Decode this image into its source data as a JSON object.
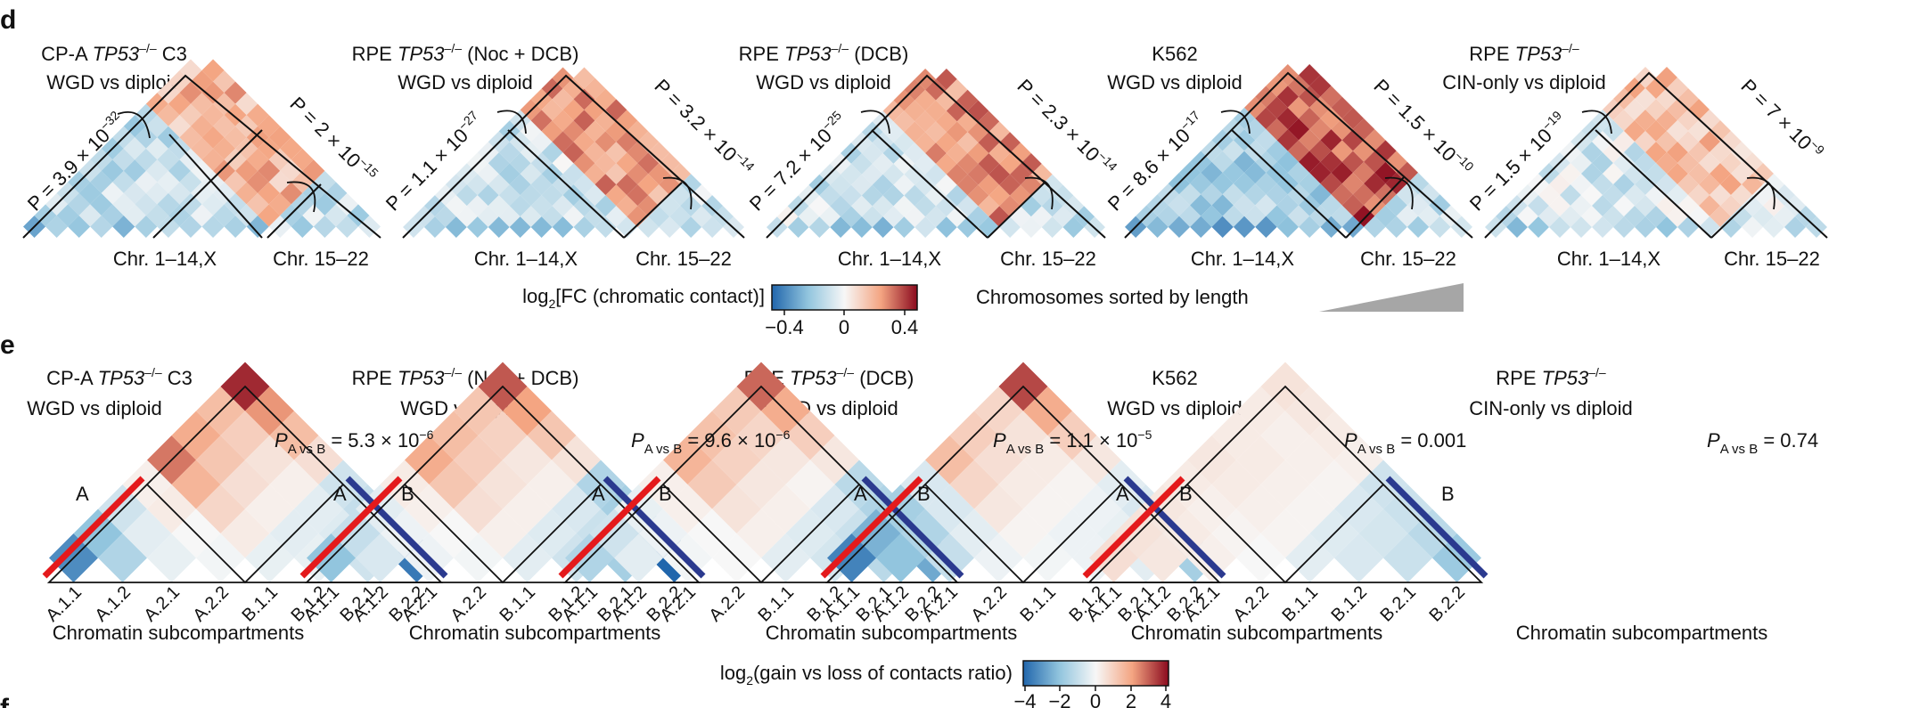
{
  "panels": {
    "d": "d",
    "e": "e",
    "f": "f"
  },
  "panel_d": {
    "plots": [
      {
        "title_pre": "CP-A ",
        "title_it": "TP53",
        "title_sup": "–/–",
        "title_post": " C3",
        "subtitle": "WGD vs diploid",
        "p_left": {
          "base": "P = 3.9 × 10",
          "exp": "−32"
        },
        "p_right": {
          "base": "P = 2 × 10",
          "exp": "−15"
        },
        "xlabel_left": "Chr. 1–14,X",
        "xlabel_right": "Chr. 15–22"
      },
      {
        "title_pre": "RPE ",
        "title_it": "TP53",
        "title_sup": "–/–",
        "title_post": " (Noc + DCB)",
        "subtitle": "WGD vs diploid",
        "p_left": {
          "base": "P = 1.1 × 10",
          "exp": "−27"
        },
        "p_right": {
          "base": "P = 3.2 × 10",
          "exp": "−14"
        },
        "xlabel_left": "Chr. 1–14,X",
        "xlabel_right": "Chr. 15–22"
      },
      {
        "title_pre": "RPE ",
        "title_it": "TP53",
        "title_sup": "–/–",
        "title_post": " (DCB)",
        "subtitle": "WGD vs diploid",
        "p_left": {
          "base": "P = 7.2 × 10",
          "exp": "−25"
        },
        "p_right": {
          "base": "P = 2.3 × 10",
          "exp": "−14"
        },
        "xlabel_left": "Chr. 1–14,X",
        "xlabel_right": "Chr. 15–22"
      },
      {
        "title_pre": "K562",
        "title_it": "",
        "title_sup": "",
        "title_post": "",
        "subtitle": "WGD vs diploid",
        "p_left": {
          "base": "P = 8.6 × 10",
          "exp": "−17"
        },
        "p_right": {
          "base": "P = 1.5 × 10",
          "exp": "−10"
        },
        "xlabel_left": "Chr. 1–14,X",
        "xlabel_right": "Chr. 15–22"
      },
      {
        "title_pre": "RPE ",
        "title_it": "TP53",
        "title_sup": "–/–",
        "title_post": "",
        "subtitle": "CIN-only vs diploid",
        "p_left": {
          "base": "P = 1.5 × 10",
          "exp": "−19"
        },
        "p_right": {
          "base": "P = 7 × 10",
          "exp": "−9"
        },
        "xlabel_left": "Chr. 1–14,X",
        "xlabel_right": "Chr. 15–22"
      }
    ],
    "colorbar": {
      "label_pre": "log",
      "label_sub": "2",
      "label_post": "[FC (chromatic contact)]",
      "ticks": [
        "−0.4",
        "0",
        "0.4"
      ],
      "range": [
        -0.4,
        0.4
      ]
    },
    "sorted_label": "Chromosomes sorted by length"
  },
  "panel_e": {
    "plots": [
      {
        "title_pre": "CP-A ",
        "title_it": "TP53",
        "title_sup": "–/–",
        "title_post": " C3",
        "subtitle": "WGD vs diploid",
        "p_main": "P",
        "p_sub": "A vs B",
        "p_val": " = 5.3 × 10",
        "p_exp": "−6"
      },
      {
        "title_pre": "RPE ",
        "title_it": "TP53",
        "title_sup": "–/–",
        "title_post": " (Noc + DCB)",
        "subtitle": "WGD vs diploid",
        "p_main": "P",
        "p_sub": "A vs B",
        "p_val": " = 9.6 × 10",
        "p_exp": "−6"
      },
      {
        "title_pre": "RPE ",
        "title_it": "TP53",
        "title_sup": "–/–",
        "title_post": " (DCB)",
        "subtitle": "WGD vs diploid",
        "p_main": "P",
        "p_sub": "A vs B",
        "p_val": " = 1.1 × 10",
        "p_exp": "−5"
      },
      {
        "title_pre": "K562",
        "title_it": "",
        "title_sup": "",
        "title_post": "",
        "subtitle": "WGD vs diploid",
        "p_main": "P",
        "p_sub": "A vs B",
        "p_val": " = 0.001",
        "p_exp": ""
      },
      {
        "title_pre": "RPE ",
        "title_it": "TP53",
        "title_sup": "–/–",
        "title_post": "",
        "subtitle": "CIN-only vs diploid",
        "p_main": "P",
        "p_sub": "A vs B",
        "p_val": " = 0.74",
        "p_exp": ""
      }
    ],
    "group_a": "A",
    "group_b": "B",
    "xlabel": "Chromatin subcompartments",
    "colorbar": {
      "label_pre": "log",
      "label_sub": "2",
      "label_post": "(gain vs loss of contacts ratio)",
      "ticks": [
        "−4",
        "−2",
        "0",
        "2",
        "4"
      ],
      "range": [
        -4,
        4
      ]
    }
  },
  "colors": {
    "negative": "#2166ac",
    "neutral": "#f7f7f7",
    "positive": "#b2182b",
    "group_a": "#e41a1c",
    "group_b": "#2b3a8f",
    "wedge": "#a6a6a6"
  },
  "chart_data": [
    {
      "type": "heatmap",
      "panel": "d",
      "series": [
        {
          "name": "CP-A TP53–/– C3 WGD vs diploid",
          "intra_small_mean": -0.2,
          "inter_mean": 0.15,
          "intra_large_mean": -0.1,
          "left_chromosomes": "Chr. 1–14,X",
          "right_chromosomes": "Chr. 15–22"
        },
        {
          "name": "RPE TP53–/– (Noc + DCB) WGD vs diploid",
          "intra_small_mean": -0.15,
          "inter_mean": 0.2,
          "intra_large_mean": -0.1
        },
        {
          "name": "RPE TP53–/– (DCB) WGD vs diploid",
          "intra_small_mean": -0.15,
          "inter_mean": 0.22,
          "intra_large_mean": -0.1
        },
        {
          "name": "K562 WGD vs diploid",
          "intra_small_mean": -0.3,
          "inter_mean": 0.3,
          "intra_large_mean": -0.1
        },
        {
          "name": "RPE TP53–/– CIN-only vs diploid",
          "intra_small_mean": -0.12,
          "inter_mean": 0.12,
          "intra_large_mean": -0.06
        }
      ],
      "colorbar_range": [
        -0.4,
        0.4
      ]
    },
    {
      "type": "heatmap",
      "panel": "e",
      "categories": [
        "A.1.1",
        "A.1.2",
        "A.2.1",
        "A.2.2",
        "B.1.1",
        "B.1.2",
        "B.2.1",
        "B.2.2"
      ],
      "series": [
        {
          "name": "CP-A TP53–/– C3",
          "matrix": [
            [
              -3.2,
              -2.0,
              -0.8,
              0.2,
              2.6,
              1.8,
              1.4,
              3.6
            ],
            [
              -2.0,
              -1.4,
              -0.4,
              0.3,
              1.6,
              1.2,
              1.0,
              2.2
            ],
            [
              -0.8,
              -0.4,
              -0.3,
              0.0,
              0.8,
              0.6,
              0.5,
              1.4
            ],
            [
              0.2,
              0.3,
              0.0,
              -0.1,
              0.3,
              0.2,
              0.2,
              0.6
            ],
            [
              2.6,
              1.6,
              0.8,
              0.3,
              -0.3,
              -0.4,
              -0.4,
              -0.8
            ],
            [
              1.8,
              1.2,
              0.6,
              0.2,
              -0.4,
              -0.3,
              -0.5,
              -1.0
            ],
            [
              1.4,
              1.0,
              0.5,
              0.2,
              -0.4,
              -0.5,
              -0.8,
              -1.4
            ],
            [
              3.6,
              2.2,
              1.4,
              0.6,
              -0.8,
              -1.0,
              -1.4,
              -3.6
            ]
          ]
        },
        {
          "name": "RPE TP53–/– (Noc + DCB)",
          "matrix": [
            [
              -2.0,
              -1.0,
              -0.4,
              0.3,
              1.8,
              1.4,
              1.2,
              3.0
            ],
            [
              -1.0,
              -0.6,
              -0.2,
              0.2,
              1.2,
              1.0,
              0.9,
              2.0
            ],
            [
              -0.4,
              -0.2,
              -0.2,
              0.0,
              0.6,
              0.5,
              0.4,
              1.2
            ],
            [
              0.3,
              0.2,
              0.0,
              -0.1,
              0.2,
              0.2,
              0.2,
              0.5
            ],
            [
              1.8,
              1.2,
              0.6,
              0.2,
              -0.4,
              -0.5,
              -0.6,
              -1.4
            ],
            [
              1.4,
              1.0,
              0.5,
              0.2,
              -0.5,
              -0.8,
              -0.9,
              -1.6
            ],
            [
              1.2,
              0.9,
              0.4,
              0.2,
              -0.6,
              -0.9,
              -1.6,
              -2.4
            ],
            [
              3.0,
              2.0,
              1.2,
              0.5,
              -1.4,
              -1.6,
              -2.4,
              -4.0
            ]
          ]
        },
        {
          "name": "RPE TP53–/– (DCB)",
          "matrix": [
            [
              -1.4,
              -0.8,
              -0.3,
              0.2,
              1.6,
              1.3,
              1.1,
              2.8
            ],
            [
              -0.8,
              -0.4,
              -0.2,
              0.2,
              1.1,
              0.9,
              0.8,
              1.8
            ],
            [
              -0.3,
              -0.2,
              -0.1,
              0.0,
              0.5,
              0.4,
              0.4,
              1.0
            ],
            [
              0.2,
              0.2,
              0.0,
              0.0,
              0.2,
              0.2,
              0.1,
              0.4
            ],
            [
              1.6,
              1.1,
              0.5,
              0.2,
              -0.4,
              -0.5,
              -0.6,
              -1.2
            ],
            [
              1.3,
              0.9,
              0.4,
              0.2,
              -0.5,
              -0.7,
              -0.9,
              -1.4
            ],
            [
              1.1,
              0.8,
              0.4,
              0.1,
              -0.6,
              -0.9,
              -1.2,
              -1.8
            ],
            [
              2.8,
              1.8,
              1.0,
              0.4,
              -1.2,
              -1.4,
              -1.8,
              -2.6
            ]
          ]
        },
        {
          "name": "K562",
          "matrix": [
            [
              -3.4,
              -2.4,
              -1.6,
              -0.6,
              1.4,
              1.0,
              0.8,
              3.2
            ],
            [
              -2.4,
              -2.0,
              -1.4,
              -0.6,
              0.8,
              0.6,
              0.5,
              1.8
            ],
            [
              -1.6,
              -1.4,
              -1.0,
              -0.4,
              0.4,
              0.3,
              0.3,
              1.0
            ],
            [
              -0.6,
              -0.6,
              -0.4,
              -0.2,
              0.1,
              0.1,
              0.1,
              0.4
            ],
            [
              1.4,
              0.8,
              0.4,
              0.1,
              -0.1,
              -0.2,
              -0.2,
              -0.4
            ],
            [
              1.0,
              0.6,
              0.3,
              0.1,
              -0.2,
              -0.2,
              -0.3,
              -0.6
            ],
            [
              0.8,
              0.5,
              0.3,
              0.1,
              -0.2,
              -0.3,
              -0.4,
              -0.8
            ],
            [
              3.2,
              1.8,
              1.0,
              0.4,
              -0.4,
              -0.6,
              -0.8,
              -1.6
            ]
          ]
        },
        {
          "name": "RPE TP53–/– CIN-only",
          "matrix": [
            [
              0.6,
              0.5,
              0.4,
              0.3,
              0.4,
              0.3,
              0.3,
              0.5
            ],
            [
              0.5,
              0.4,
              0.3,
              0.2,
              0.3,
              0.3,
              0.2,
              0.4
            ],
            [
              0.4,
              0.3,
              0.2,
              0.1,
              0.2,
              0.2,
              0.2,
              0.3
            ],
            [
              0.3,
              0.2,
              0.1,
              0.0,
              0.1,
              0.1,
              0.1,
              0.2
            ],
            [
              0.4,
              0.3,
              0.2,
              0.1,
              -0.4,
              -0.5,
              -0.6,
              -0.8
            ],
            [
              0.3,
              0.3,
              0.2,
              0.1,
              -0.5,
              -0.6,
              -0.7,
              -0.9
            ],
            [
              0.3,
              0.2,
              0.2,
              0.1,
              -0.6,
              -0.7,
              -0.9,
              -1.2
            ],
            [
              0.5,
              0.4,
              0.3,
              0.2,
              -0.8,
              -0.9,
              -1.2,
              -1.8
            ]
          ]
        }
      ],
      "colorbar_range": [
        -4,
        4
      ]
    }
  ]
}
